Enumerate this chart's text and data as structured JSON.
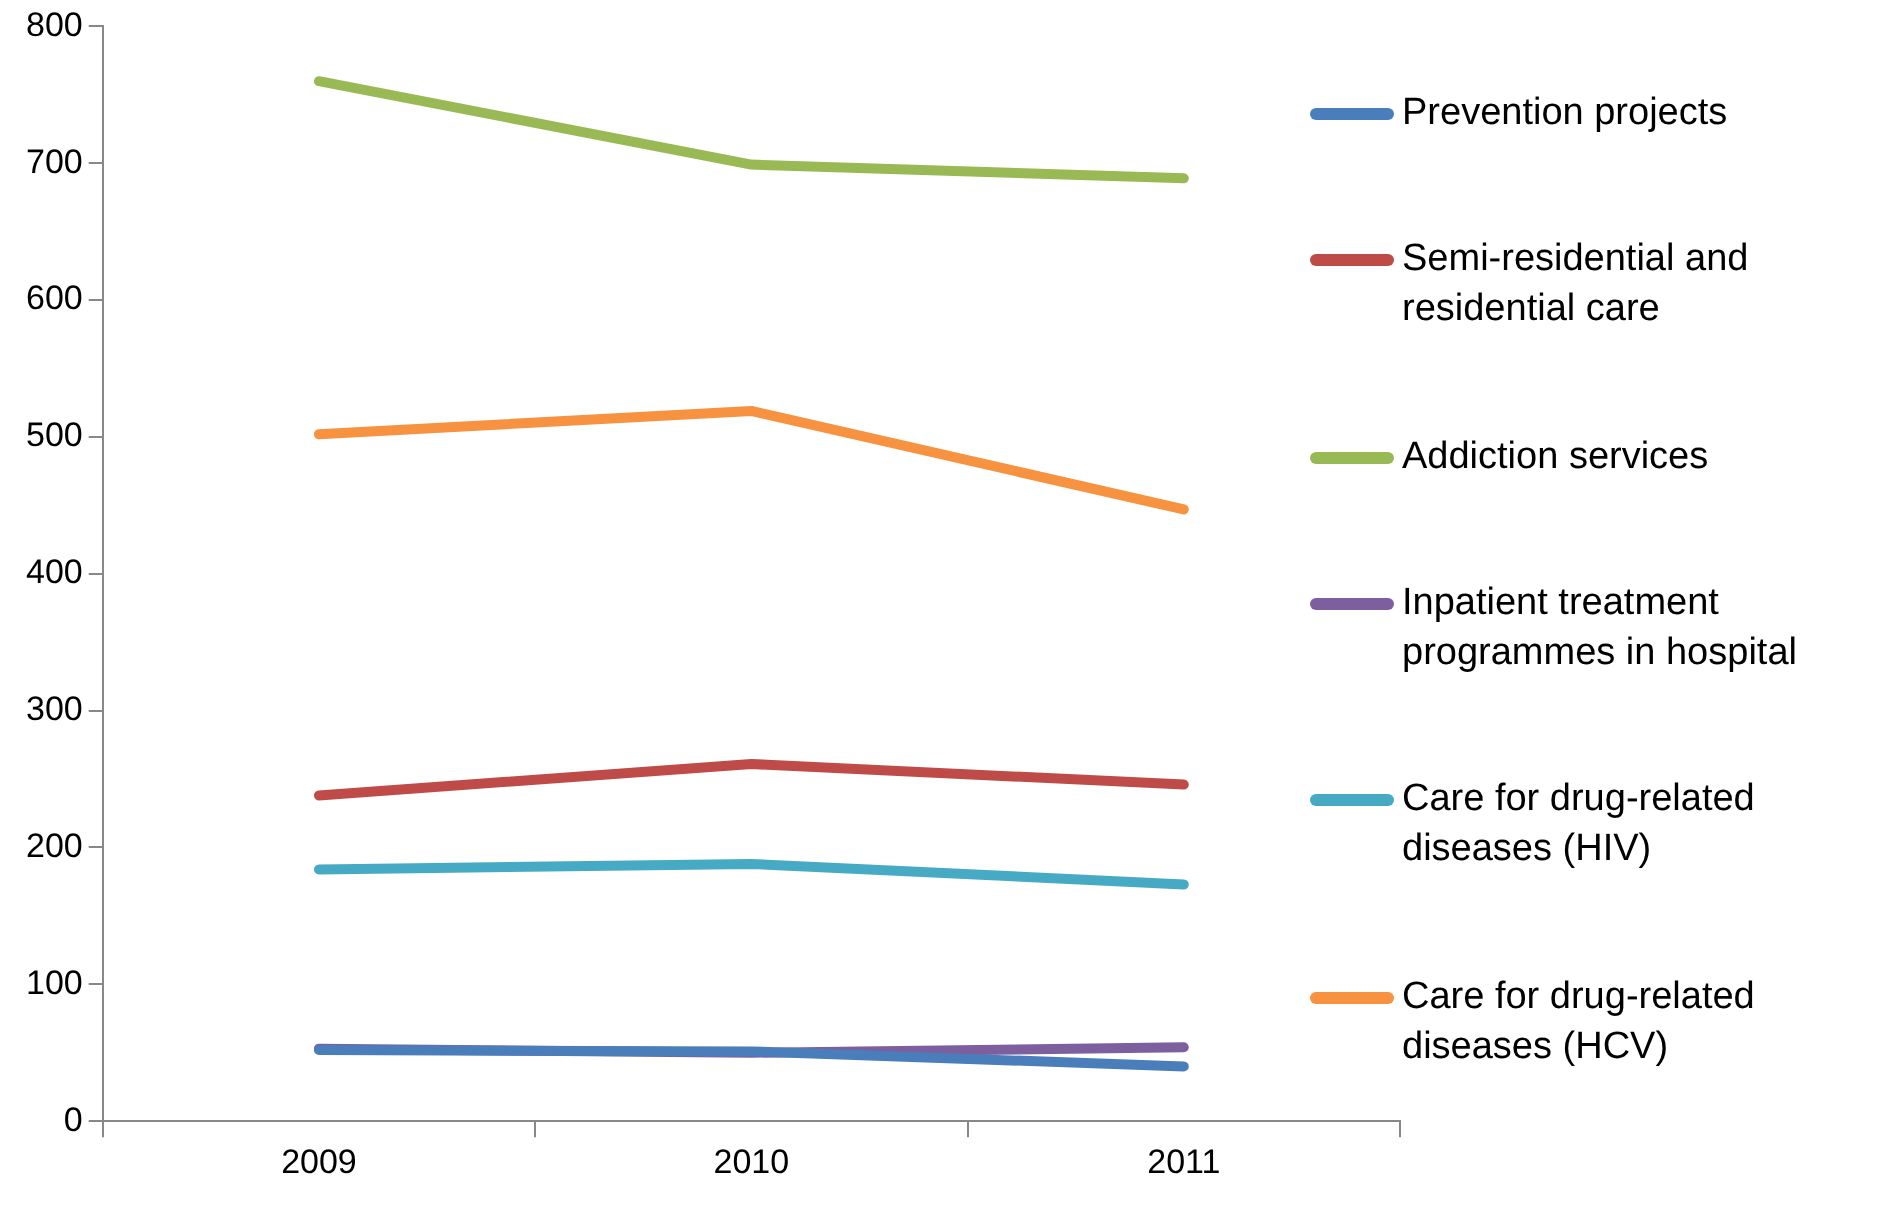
{
  "chart_data": {
    "type": "line",
    "categories": [
      "2009",
      "2010",
      "2011"
    ],
    "series": [
      {
        "name": "Prevention projects",
        "color": "#4a7ebb",
        "values": [
          52,
          51,
          40
        ]
      },
      {
        "name": "Semi-residential and residential care",
        "color": "#be4b48",
        "values": [
          238,
          261,
          246
        ]
      },
      {
        "name": "Addiction services",
        "color": "#98b954",
        "values": [
          760,
          699,
          689
        ]
      },
      {
        "name": "Inpatient treatment programmes in hospital",
        "color": "#7d5fa0",
        "values": [
          53,
          50,
          54
        ]
      },
      {
        "name": "Care for drug-related diseases (HIV)",
        "color": "#46aac5",
        "values": [
          184,
          188,
          173
        ]
      },
      {
        "name": "Care for drug-related diseases (HCV)",
        "color": "#f69240",
        "values": [
          502,
          519,
          447
        ]
      }
    ],
    "ylim": [
      0,
      800
    ],
    "yticks": [
      0,
      100,
      200,
      300,
      400,
      500,
      600,
      700,
      800
    ],
    "grid": false,
    "legend": "right",
    "marker": "none",
    "line_style": "solid"
  }
}
